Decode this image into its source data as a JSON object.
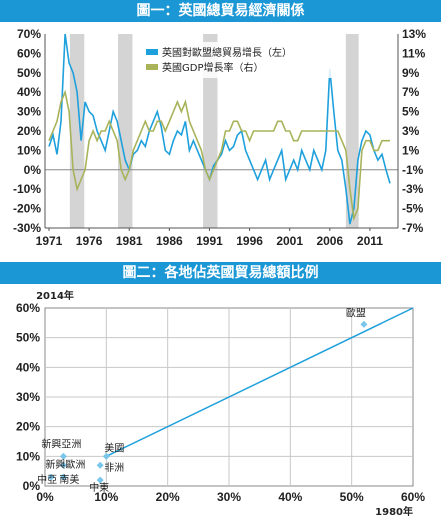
{
  "chart_data": [
    {
      "type": "line",
      "title": "圖一：英國總貿易經濟關係",
      "x_ticks": [
        "1971",
        "1976",
        "1981",
        "1986",
        "1991",
        "1996",
        "2001",
        "2006",
        "2011"
      ],
      "left_axis": {
        "ticks": [
          "70%",
          "60%",
          "50%",
          "40%",
          "30%",
          "20%",
          "10%",
          "0%",
          "-10%",
          "-20%",
          "-30%"
        ],
        "ylim": [
          -30,
          70
        ]
      },
      "right_axis": {
        "ticks": [
          "13%",
          "11%",
          "9%",
          "7%",
          "5%",
          "3%",
          "1%",
          "-1%",
          "-3%",
          "-5%",
          "-7%"
        ],
        "ylim": [
          -7,
          13
        ]
      },
      "legend_position": "top-right",
      "series": [
        {
          "name": "英國對歐盟總貿易增長（左）",
          "axis": "left",
          "color": "#1ea0dc",
          "x": [
            1971.0,
            1971.5,
            1972.0,
            1972.5,
            1973.0,
            1973.5,
            1974.0,
            1974.5,
            1975.0,
            1975.5,
            1976.0,
            1976.5,
            1977.0,
            1977.5,
            1978.0,
            1978.5,
            1979.0,
            1979.5,
            1980.0,
            1980.5,
            1981.0,
            1981.5,
            1982.0,
            1982.5,
            1983.0,
            1983.5,
            1984.0,
            1984.5,
            1985.0,
            1985.5,
            1986.0,
            1986.5,
            1987.0,
            1987.5,
            1988.0,
            1988.5,
            1989.0,
            1989.5,
            1990.0,
            1990.5,
            1991.0,
            1991.5,
            1992.0,
            1992.5,
            1993.0,
            1993.5,
            1994.0,
            1994.5,
            1995.0,
            1995.5,
            1996.0,
            1996.5,
            1997.0,
            1997.5,
            1998.0,
            1998.5,
            1999.0,
            1999.5,
            2000.0,
            2000.5,
            2001.0,
            2001.5,
            2002.0,
            2002.5,
            2003.0,
            2003.5,
            2004.0,
            2004.5,
            2005.0,
            2005.5,
            2006.0,
            2006.5,
            2007.0,
            2007.5,
            2008.0,
            2008.5,
            2009.0,
            2009.5,
            2010.0,
            2010.5,
            2011.0,
            2011.5,
            2012.0,
            2012.5,
            2013.0,
            2013.5
          ],
          "values": [
            12,
            18,
            8,
            25,
            70,
            55,
            50,
            40,
            15,
            35,
            30,
            28,
            20,
            15,
            10,
            20,
            30,
            25,
            15,
            5,
            0,
            8,
            10,
            15,
            12,
            20,
            25,
            30,
            22,
            10,
            8,
            15,
            20,
            18,
            25,
            10,
            15,
            10,
            5,
            0,
            -5,
            2,
            5,
            8,
            15,
            10,
            12,
            18,
            20,
            10,
            5,
            0,
            -5,
            0,
            5,
            -5,
            0,
            5,
            10,
            -5,
            0,
            5,
            0,
            10,
            5,
            0,
            10,
            5,
            0,
            10,
            52,
            30,
            10,
            5,
            -10,
            -28,
            -20,
            5,
            15,
            20,
            18,
            10,
            5,
            8,
            0,
            -7
          ]
        },
        {
          "name": "英國GDP增長率（右）",
          "axis": "right",
          "color": "#a8b35a",
          "x": [
            1971.0,
            1971.5,
            1972.0,
            1972.5,
            1973.0,
            1973.5,
            1974.0,
            1974.5,
            1975.0,
            1975.5,
            1976.0,
            1976.5,
            1977.0,
            1977.5,
            1978.0,
            1978.5,
            1979.0,
            1979.5,
            1980.0,
            1980.5,
            1981.0,
            1981.5,
            1982.0,
            1982.5,
            1983.0,
            1983.5,
            1984.0,
            1984.5,
            1985.0,
            1985.5,
            1986.0,
            1986.5,
            1987.0,
            1987.5,
            1988.0,
            1988.5,
            1989.0,
            1989.5,
            1990.0,
            1990.5,
            1991.0,
            1991.5,
            1992.0,
            1992.5,
            1993.0,
            1993.5,
            1994.0,
            1994.5,
            1995.0,
            1995.5,
            1996.0,
            1996.5,
            1997.0,
            1997.5,
            1998.0,
            1998.5,
            1999.0,
            1999.5,
            2000.0,
            2000.5,
            2001.0,
            2001.5,
            2002.0,
            2002.5,
            2003.0,
            2003.5,
            2004.0,
            2004.5,
            2005.0,
            2005.5,
            2006.0,
            2006.5,
            2007.0,
            2007.5,
            2008.0,
            2008.5,
            2009.0,
            2009.5,
            2010.0,
            2010.5,
            2011.0,
            2011.5,
            2012.0,
            2012.5,
            2013.0,
            2013.5
          ],
          "values": [
            2,
            3,
            4,
            6,
            7,
            5,
            -1,
            -3,
            -2,
            -1,
            2,
            3,
            2,
            3,
            3,
            4,
            3,
            2,
            -1,
            -2,
            -1,
            1,
            2,
            3,
            4,
            3,
            3,
            4,
            4,
            3,
            4,
            5,
            6,
            5,
            6,
            4,
            3,
            2,
            1,
            -1,
            -2,
            -1,
            0,
            1,
            3,
            3,
            4,
            4,
            3,
            3,
            2,
            3,
            3,
            3,
            3,
            3,
            3,
            4,
            4,
            3,
            3,
            2,
            2,
            3,
            3,
            3,
            3,
            3,
            3,
            3,
            3,
            3,
            3,
            2,
            1,
            -3,
            -6,
            -5,
            1,
            2,
            2,
            1,
            1,
            2,
            2,
            2
          ]
        }
      ],
      "shading": {
        "color": "#d4d4d4",
        "description": "recession bands",
        "ranges": [
          [
            1973.6,
            1975.4
          ],
          [
            1979.6,
            1981.4
          ],
          [
            1990.2,
            1992.0
          ],
          [
            2008.0,
            2009.6
          ]
        ]
      }
    },
    {
      "type": "scatter",
      "title": "圖二：各地佔英國貿易總額比例",
      "xlabel": "1980年",
      "ylabel": "2014年",
      "xlim": [
        0,
        60
      ],
      "ylim": [
        0,
        60
      ],
      "x_ticks": [
        "0%",
        "10%",
        "20%",
        "30%",
        "40%",
        "50%",
        "60%"
      ],
      "y_ticks": [
        "0%",
        "10%",
        "20%",
        "30%",
        "40%",
        "50%",
        "60%"
      ],
      "grid": true,
      "trend_line": {
        "from": [
          10,
          10
        ],
        "to": [
          60,
          60
        ],
        "color": "#1ea0dc"
      },
      "points": [
        {
          "label": "歐盟",
          "x": 52,
          "y": 54.5
        },
        {
          "label": "美國",
          "x": 10,
          "y": 10
        },
        {
          "label": "新興亞洲",
          "x": 3,
          "y": 10
        },
        {
          "label": "新興歐洲",
          "x": 3,
          "y": 7
        },
        {
          "label": "非洲",
          "x": 9,
          "y": 7
        },
        {
          "label": "中亞",
          "x": 1,
          "y": 3
        },
        {
          "label": "南美",
          "x": 3,
          "y": 3
        },
        {
          "label": "中東",
          "x": 9,
          "y": 2
        }
      ],
      "point_color": "#7ac6ea"
    }
  ]
}
